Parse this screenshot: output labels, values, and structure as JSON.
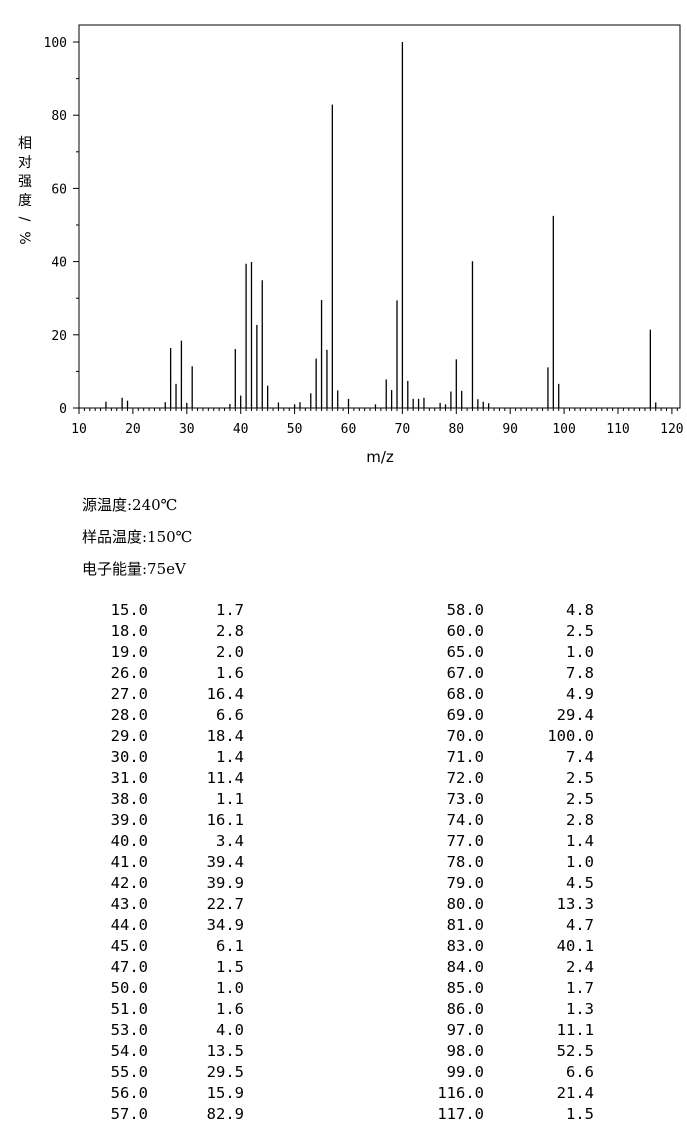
{
  "chart_data": {
    "type": "bar",
    "xlabel": "m/z",
    "ylabel": "相对强度/%",
    "xlim": [
      10,
      122
    ],
    "ylim": [
      0,
      100
    ],
    "xticks": [
      "10",
      "20",
      "30",
      "40",
      "50",
      "60",
      "70",
      "80",
      "90",
      "100",
      "110",
      "120"
    ],
    "yticks": [
      "0",
      "20",
      "40",
      "60",
      "80",
      "100"
    ],
    "x": [
      15,
      18,
      19,
      26,
      27,
      28,
      29,
      30,
      31,
      38,
      39,
      40,
      41,
      42,
      43,
      44,
      45,
      47,
      50,
      51,
      53,
      54,
      55,
      56,
      57,
      58,
      60,
      65,
      67,
      68,
      69,
      70,
      71,
      72,
      73,
      74,
      77,
      78,
      79,
      80,
      81,
      83,
      84,
      85,
      86,
      97,
      98,
      99,
      116,
      117
    ],
    "values": [
      1.7,
      2.8,
      2.0,
      1.6,
      16.4,
      6.6,
      18.4,
      1.4,
      11.4,
      1.1,
      16.1,
      3.4,
      39.4,
      39.9,
      22.7,
      34.9,
      6.1,
      1.5,
      1.0,
      1.6,
      4.0,
      13.5,
      29.5,
      15.9,
      82.9,
      4.8,
      2.5,
      1.0,
      7.8,
      4.9,
      29.4,
      100.0,
      7.4,
      2.5,
      2.5,
      2.8,
      1.4,
      1.0,
      4.5,
      13.3,
      4.7,
      40.1,
      2.4,
      1.7,
      1.3,
      11.1,
      52.5,
      6.6,
      21.4,
      1.5
    ]
  },
  "params": [
    "源温度:240℃",
    "样品温度:150℃",
    "电子能量:75eV"
  ],
  "table_left": [
    [
      "15.0",
      "1.7"
    ],
    [
      "18.0",
      "2.8"
    ],
    [
      "19.0",
      "2.0"
    ],
    [
      "26.0",
      "1.6"
    ],
    [
      "27.0",
      "16.4"
    ],
    [
      "28.0",
      "6.6"
    ],
    [
      "29.0",
      "18.4"
    ],
    [
      "30.0",
      "1.4"
    ],
    [
      "31.0",
      "11.4"
    ],
    [
      "38.0",
      "1.1"
    ],
    [
      "39.0",
      "16.1"
    ],
    [
      "40.0",
      "3.4"
    ],
    [
      "41.0",
      "39.4"
    ],
    [
      "42.0",
      "39.9"
    ],
    [
      "43.0",
      "22.7"
    ],
    [
      "44.0",
      "34.9"
    ],
    [
      "45.0",
      "6.1"
    ],
    [
      "47.0",
      "1.5"
    ],
    [
      "50.0",
      "1.0"
    ],
    [
      "51.0",
      "1.6"
    ],
    [
      "53.0",
      "4.0"
    ],
    [
      "54.0",
      "13.5"
    ],
    [
      "55.0",
      "29.5"
    ],
    [
      "56.0",
      "15.9"
    ],
    [
      "57.0",
      "82.9"
    ]
  ],
  "table_right": [
    [
      "58.0",
      "4.8"
    ],
    [
      "60.0",
      "2.5"
    ],
    [
      "65.0",
      "1.0"
    ],
    [
      "67.0",
      "7.8"
    ],
    [
      "68.0",
      "4.9"
    ],
    [
      "69.0",
      "29.4"
    ],
    [
      "70.0",
      "100.0"
    ],
    [
      "71.0",
      "7.4"
    ],
    [
      "72.0",
      "2.5"
    ],
    [
      "73.0",
      "2.5"
    ],
    [
      "74.0",
      "2.8"
    ],
    [
      "77.0",
      "1.4"
    ],
    [
      "78.0",
      "1.0"
    ],
    [
      "79.0",
      "4.5"
    ],
    [
      "80.0",
      "13.3"
    ],
    [
      "81.0",
      "4.7"
    ],
    [
      "83.0",
      "40.1"
    ],
    [
      "84.0",
      "2.4"
    ],
    [
      "85.0",
      "1.7"
    ],
    [
      "86.0",
      "1.3"
    ],
    [
      "97.0",
      "11.1"
    ],
    [
      "98.0",
      "52.5"
    ],
    [
      "99.0",
      "6.6"
    ],
    [
      "116.0",
      "21.4"
    ],
    [
      "117.0",
      "1.5"
    ]
  ]
}
